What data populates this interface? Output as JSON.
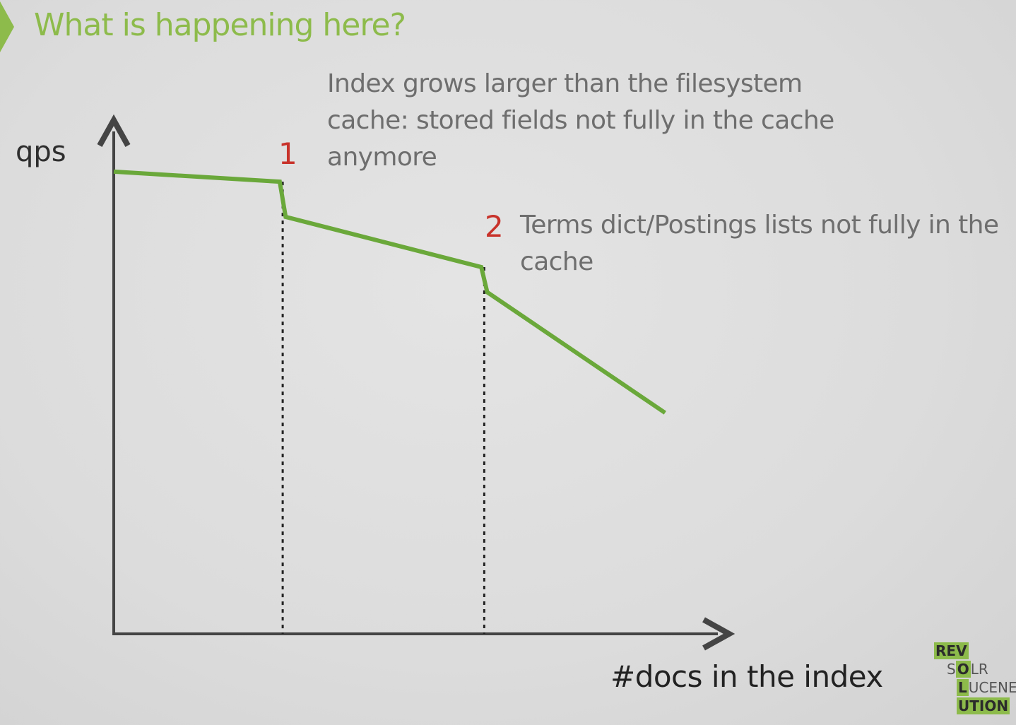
{
  "title": "What is happening here?",
  "colors": {
    "title": "#8dbb4b",
    "line": "#6aa83a",
    "marker": "#c8322a",
    "axis": "#444444"
  },
  "chart_data": {
    "type": "line",
    "ylabel": "qps",
    "xlabel": "#docs in the index",
    "series": [
      {
        "points": [
          [
            0.0,
            0.92
          ],
          [
            0.28,
            0.9
          ],
          [
            0.29,
            0.83
          ],
          [
            0.62,
            0.73
          ],
          [
            0.63,
            0.68
          ],
          [
            0.93,
            0.44
          ]
        ]
      }
    ],
    "events": [
      {
        "x": 0.285,
        "label": "1",
        "text": [
          "Index grows larger than the filesystem",
          "cache: stored fields not fully in the cache",
          "anymore"
        ]
      },
      {
        "x": 0.625,
        "label": "2",
        "text": [
          "Terms dict/Postings lists not fully in the",
          "cache"
        ]
      }
    ],
    "xlim": [
      0,
      1
    ],
    "ylim": [
      0,
      1
    ]
  },
  "logo": {
    "rows": [
      {
        "lead": "REV",
        "tail": ""
      },
      {
        "lead": "S",
        "mid": "O",
        "tail": "LR"
      },
      {
        "lead": "",
        "mid": "L",
        "tail": "UCENE"
      },
      {
        "lead": "UTION",
        "tail": ""
      }
    ]
  }
}
